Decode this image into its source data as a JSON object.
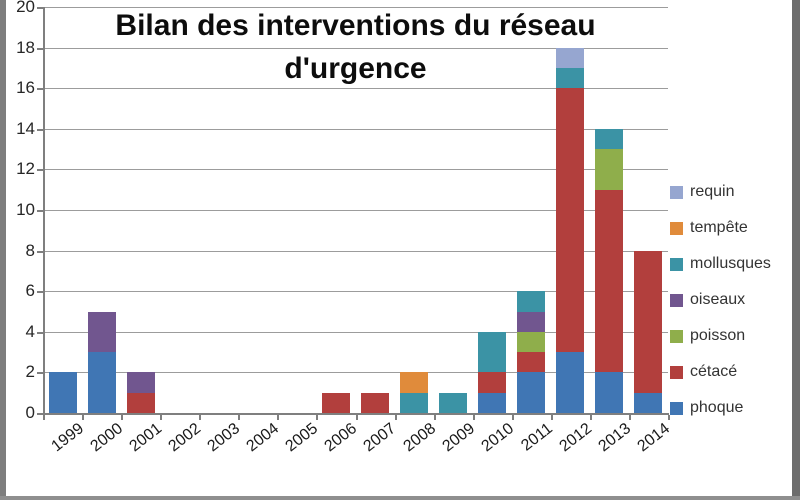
{
  "chart_data": {
    "type": "bar",
    "stacked": true,
    "title": "Bilan des interventions du réseau d'urgence",
    "categories": [
      "1999",
      "2000",
      "2001",
      "2002",
      "2003",
      "2004",
      "2005",
      "2006",
      "2007",
      "2008",
      "2009",
      "2010",
      "2011",
      "2012",
      "2013",
      "2014"
    ],
    "series": [
      {
        "name": "phoque",
        "color": "#4076B4",
        "values": [
          2,
          3,
          0,
          0,
          0,
          0,
          0,
          0,
          0,
          0,
          0,
          1,
          2,
          3,
          2,
          1
        ]
      },
      {
        "name": "cétacé",
        "color": "#B23F3D",
        "values": [
          0,
          0,
          1,
          0,
          0,
          0,
          0,
          1,
          1,
          0,
          0,
          1,
          1,
          13,
          9,
          7
        ]
      },
      {
        "name": "poisson",
        "color": "#8FAE4B",
        "values": [
          0,
          0,
          0,
          0,
          0,
          0,
          0,
          0,
          0,
          0,
          0,
          0,
          1,
          0,
          2,
          0
        ]
      },
      {
        "name": "oiseaux",
        "color": "#71568F",
        "values": [
          0,
          2,
          1,
          0,
          0,
          0,
          0,
          0,
          0,
          0,
          0,
          0,
          1,
          0,
          0,
          0
        ]
      },
      {
        "name": "mollusques",
        "color": "#3B93A5",
        "values": [
          0,
          0,
          0,
          0,
          0,
          0,
          0,
          0,
          0,
          1,
          1,
          2,
          1,
          1,
          1,
          0
        ]
      },
      {
        "name": "tempête",
        "color": "#E08B3B",
        "values": [
          0,
          0,
          0,
          0,
          0,
          0,
          0,
          0,
          0,
          1,
          0,
          0,
          0,
          0,
          0,
          0
        ]
      },
      {
        "name": "requin",
        "color": "#96A6D0",
        "values": [
          0,
          0,
          0,
          0,
          0,
          0,
          0,
          0,
          0,
          0,
          0,
          0,
          0,
          1,
          0,
          0
        ]
      }
    ],
    "legend": [
      "requin",
      "tempête",
      "mollusques",
      "oiseaux",
      "poisson",
      "cétacé",
      "phoque"
    ],
    "legend_position": "right",
    "ylim": [
      0,
      20
    ],
    "ytick_step": 2,
    "yticks": [
      0,
      2,
      4,
      6,
      8,
      10,
      12,
      14,
      16,
      18,
      20
    ],
    "grid": true,
    "xlabel": "",
    "ylabel": ""
  },
  "colors": {
    "gridline": "#9c9c9c",
    "axis": "#7f7f7f",
    "axis_text": "#262626",
    "title_text": "#0d0d0d",
    "frame_border": "#7e7e7e",
    "background": "#ffffff"
  }
}
